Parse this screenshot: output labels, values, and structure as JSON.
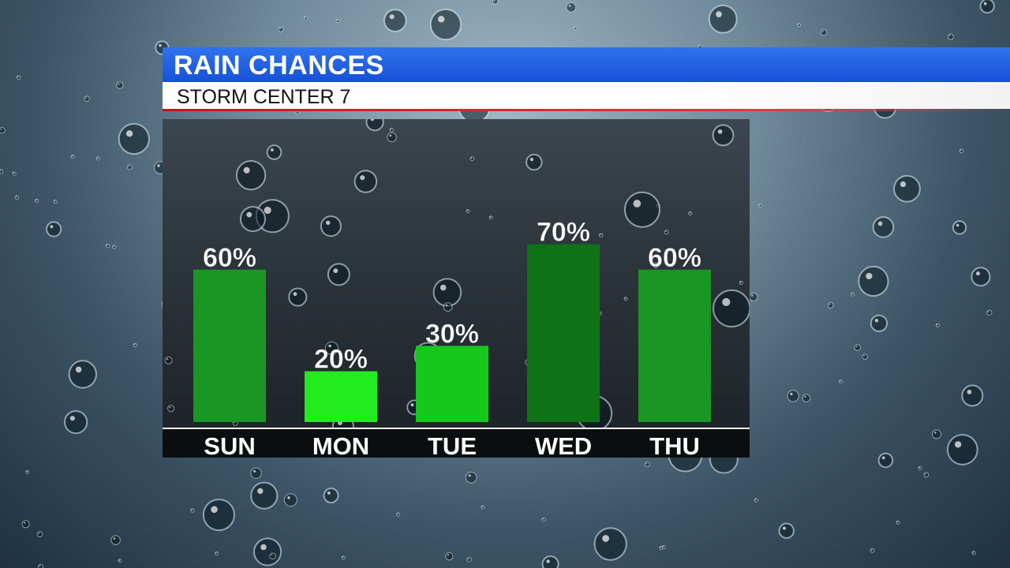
{
  "header": {
    "title": "RAIN CHANCES",
    "subtitle": "STORM CENTER 7"
  },
  "colors": {
    "title_bar": "#1e5fe6",
    "accent_line": "#d9262c",
    "panel": "#20262b"
  },
  "chart_data": {
    "type": "bar",
    "categories": [
      "SUN",
      "MON",
      "TUE",
      "WED",
      "THU"
    ],
    "values": [
      60,
      20,
      30,
      70,
      60
    ],
    "value_labels": [
      "60%",
      "20%",
      "30%",
      "70%",
      "60%"
    ],
    "bar_colors": [
      "#1a9624",
      "#22ec1d",
      "#16c81c",
      "#0d7316",
      "#1a9624"
    ],
    "ylim": [
      0,
      100
    ],
    "grid": false,
    "legend": "none"
  }
}
